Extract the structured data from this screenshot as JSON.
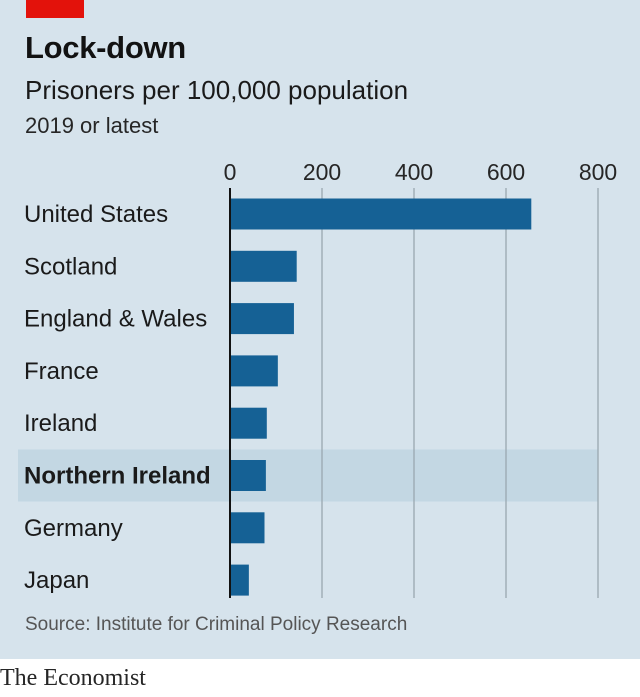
{
  "header": {
    "title": "Lock-down",
    "subtitle": "Prisoners per 100,000 population",
    "subtitle2": "2019 or latest"
  },
  "footer": {
    "source": "Source: Institute for Criminal Policy Research",
    "brand": "The Economist"
  },
  "colors": {
    "bar": "#156195",
    "highlight_band": "#c3d7e3",
    "grid": "#9aa7b0",
    "axis": "#121212",
    "accent": "#e3120b"
  },
  "chart_data": {
    "type": "bar",
    "orientation": "horizontal",
    "title": "Lock-down",
    "subtitle": "Prisoners per 100,000 population",
    "note": "2019 or latest",
    "categories": [
      "United States",
      "Scotland",
      "England & Wales",
      "France",
      "Ireland",
      "Northern Ireland",
      "Germany",
      "Japan"
    ],
    "values": [
      655,
      145,
      139,
      104,
      80,
      78,
      75,
      41
    ],
    "highlight": "Northern Ireland",
    "xlim": [
      0,
      800
    ],
    "xticks": [
      0,
      200,
      400,
      600,
      800
    ],
    "xlabel": "",
    "ylabel": "",
    "grid": true,
    "tick_position": "top"
  }
}
